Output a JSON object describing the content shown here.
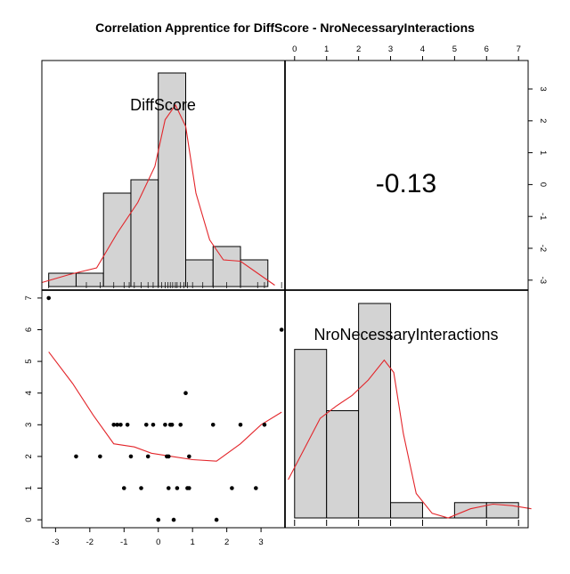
{
  "chart_data": {
    "type": "scatter-matrix",
    "title": "Correlation Apprentice for DiffScore - NroNecessaryInteractions",
    "variables": [
      "DiffScore",
      "NroNecessaryInteractions"
    ],
    "correlation": "-0.13",
    "xlim": [
      -3.4,
      3.7
    ],
    "ylim": [
      -0.25,
      7.25
    ],
    "scatter_x_ticks": [
      "-3",
      "-2",
      "-1",
      "0",
      "1",
      "2",
      "3"
    ],
    "scatter_y_ticks": [
      "0",
      "1",
      "2",
      "3",
      "4",
      "5",
      "6",
      "7"
    ],
    "top_x_ticks": [
      "0",
      "1",
      "2",
      "3",
      "4",
      "5",
      "6",
      "7"
    ],
    "right_y_ticks": [
      "-3",
      "-2",
      "-1",
      "0",
      "1",
      "2",
      "3"
    ],
    "diffscore_histogram": {
      "bins": [
        [
          -3.2,
          -2.4
        ],
        [
          -2.4,
          -1.6
        ],
        [
          -1.6,
          -0.8
        ],
        [
          -0.8,
          0.0
        ],
        [
          0.0,
          0.8
        ],
        [
          0.8,
          1.6
        ],
        [
          1.6,
          2.4
        ],
        [
          2.4,
          3.2
        ]
      ],
      "heights": [
        1,
        1,
        7,
        8,
        16,
        2,
        3,
        2
      ],
      "max_height": 16,
      "density": [
        [
          -3.4,
          0.3
        ],
        [
          -2.6,
          0.9
        ],
        [
          -1.8,
          1.4
        ],
        [
          -1.2,
          4.0
        ],
        [
          -0.6,
          6.3
        ],
        [
          -0.1,
          9.0
        ],
        [
          0.2,
          12.5
        ],
        [
          0.5,
          13.6
        ],
        [
          0.8,
          12.0
        ],
        [
          1.1,
          7.0
        ],
        [
          1.5,
          3.5
        ],
        [
          1.9,
          2.0
        ],
        [
          2.4,
          1.9
        ],
        [
          2.9,
          1.0
        ],
        [
          3.4,
          0.1
        ]
      ],
      "rug": [
        -3.2,
        -2.1,
        -1.7,
        -1.3,
        -1.0,
        -0.85,
        -0.7,
        -0.5,
        -0.3,
        -0.15,
        0.0,
        0.1,
        0.2,
        0.28,
        0.35,
        0.42,
        0.5,
        0.55,
        0.65,
        0.75,
        0.85,
        1.0,
        1.3,
        1.6,
        2.0,
        2.4,
        2.9,
        3.1,
        3.6
      ]
    },
    "interactions_histogram": {
      "bins": [
        [
          0,
          1
        ],
        [
          1,
          2
        ],
        [
          2,
          3
        ],
        [
          3,
          4
        ],
        [
          4,
          5
        ],
        [
          5,
          6
        ],
        [
          6,
          7
        ]
      ],
      "heights": [
        11,
        7,
        14,
        1,
        0,
        1,
        1
      ],
      "max_height": 14,
      "density": [
        [
          -0.2,
          2.5
        ],
        [
          0.3,
          4.5
        ],
        [
          0.8,
          6.5
        ],
        [
          1.3,
          7.3
        ],
        [
          1.8,
          8.0
        ],
        [
          2.3,
          9.0
        ],
        [
          2.8,
          10.3
        ],
        [
          3.1,
          9.5
        ],
        [
          3.4,
          5.5
        ],
        [
          3.8,
          1.6
        ],
        [
          4.3,
          0.3
        ],
        [
          4.8,
          0.0
        ],
        [
          5.5,
          0.6
        ],
        [
          6.2,
          0.9
        ],
        [
          6.8,
          0.8
        ],
        [
          7.4,
          0.6
        ]
      ],
      "rug": [
        0,
        1,
        2,
        3,
        4,
        6,
        7
      ]
    },
    "scatter": {
      "points": [
        [
          -3.2,
          7
        ],
        [
          3.6,
          6
        ],
        [
          0.8,
          4
        ],
        [
          -1.3,
          3
        ],
        [
          -1.2,
          3
        ],
        [
          -1.1,
          3
        ],
        [
          -0.9,
          3
        ],
        [
          -0.35,
          3
        ],
        [
          -0.15,
          3
        ],
        [
          0.2,
          3
        ],
        [
          0.35,
          3
        ],
        [
          0.4,
          3
        ],
        [
          0.65,
          3
        ],
        [
          1.6,
          3
        ],
        [
          2.4,
          3
        ],
        [
          3.1,
          3
        ],
        [
          -2.4,
          2
        ],
        [
          -1.7,
          2
        ],
        [
          -0.8,
          2
        ],
        [
          -0.3,
          2
        ],
        [
          0.25,
          2
        ],
        [
          0.3,
          2
        ],
        [
          0.9,
          2
        ],
        [
          -1.0,
          1
        ],
        [
          -0.5,
          1
        ],
        [
          0.3,
          1
        ],
        [
          0.55,
          1
        ],
        [
          0.85,
          1
        ],
        [
          0.9,
          1
        ],
        [
          2.15,
          1
        ],
        [
          2.85,
          1
        ],
        [
          0.0,
          0
        ],
        [
          0.45,
          0
        ],
        [
          1.7,
          0
        ]
      ],
      "smooth": [
        [
          -3.2,
          5.3
        ],
        [
          -2.5,
          4.3
        ],
        [
          -1.9,
          3.3
        ],
        [
          -1.3,
          2.4
        ],
        [
          -0.7,
          2.3
        ],
        [
          -0.2,
          2.1
        ],
        [
          0.4,
          2.0
        ],
        [
          1.0,
          1.9
        ],
        [
          1.7,
          1.85
        ],
        [
          2.4,
          2.4
        ],
        [
          3.0,
          3.0
        ],
        [
          3.6,
          3.4
        ]
      ]
    },
    "grid": false,
    "legend": "none"
  }
}
